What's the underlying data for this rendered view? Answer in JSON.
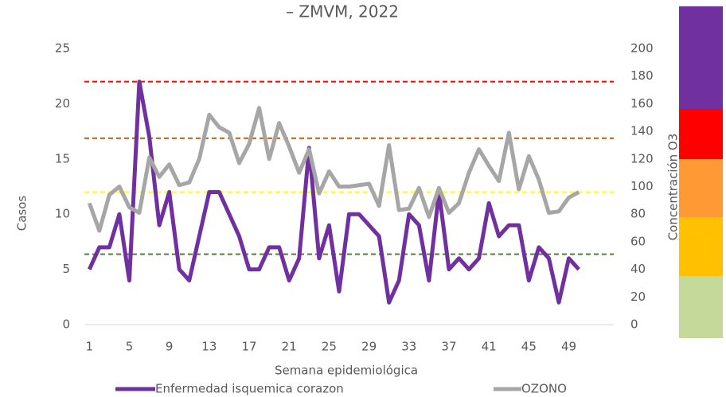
{
  "chart_data": {
    "type": "line",
    "title": "– ZMVM, 2022",
    "x_label": "Semana epidemiológica",
    "y_label": "Casos",
    "y2_label": "Concentración O3",
    "x": [
      1,
      2,
      3,
      4,
      5,
      6,
      7,
      8,
      9,
      10,
      11,
      12,
      13,
      14,
      15,
      16,
      17,
      18,
      19,
      20,
      21,
      22,
      23,
      24,
      25,
      26,
      27,
      28,
      29,
      30,
      31,
      32,
      33,
      34,
      35,
      36,
      37,
      38,
      39,
      40,
      41,
      42,
      43,
      44,
      45,
      46,
      47,
      48,
      49,
      50
    ],
    "xlim": [
      0.5,
      53.5
    ],
    "xticks": [
      1,
      5,
      9,
      13,
      17,
      21,
      25,
      29,
      33,
      37,
      41,
      45,
      49
    ],
    "ylim": [
      0,
      25
    ],
    "yticks": [
      0,
      5,
      10,
      15,
      20,
      25
    ],
    "y2lim": [
      0,
      200
    ],
    "y2ticks": [
      0,
      20,
      40,
      60,
      80,
      100,
      120,
      140,
      160,
      180,
      200
    ],
    "series": [
      {
        "name": "Enfermedad isquemica corazon",
        "color": "#7030a0",
        "values": [
          5,
          7,
          7,
          10,
          4,
          22,
          17,
          9,
          12,
          5,
          4,
          8,
          12,
          12,
          10,
          8,
          5,
          5,
          7,
          7,
          4,
          6,
          16,
          6,
          9,
          3,
          10,
          10,
          9,
          8,
          2,
          4,
          10,
          9,
          4,
          12,
          5,
          6,
          5,
          6,
          11,
          8,
          9,
          9,
          4,
          7,
          6,
          2,
          6,
          5
        ]
      },
      {
        "name": "OZONO",
        "color": "#a6a6a6",
        "axis": "y2",
        "values": [
          88,
          68,
          94,
          100,
          85,
          81,
          121,
          107,
          116,
          101,
          103,
          120,
          152,
          143,
          139,
          117,
          131,
          157,
          120,
          146,
          129,
          110,
          127,
          95,
          111,
          100,
          100,
          101,
          102,
          86,
          130,
          83,
          84,
          99,
          78,
          99,
          81,
          88,
          110,
          127,
          115,
          104,
          139,
          98,
          122,
          105,
          81,
          82,
          92,
          96
        ]
      }
    ],
    "reference_lines": [
      {
        "value": 176,
        "color": "#ff0000",
        "axis": "y2"
      },
      {
        "value": 135,
        "color": "#c55a11",
        "axis": "y2"
      },
      {
        "value": 96,
        "color": "#ffff00",
        "axis": "y2"
      },
      {
        "value": 51,
        "color": "#548235",
        "axis": "y2"
      }
    ]
  }
}
